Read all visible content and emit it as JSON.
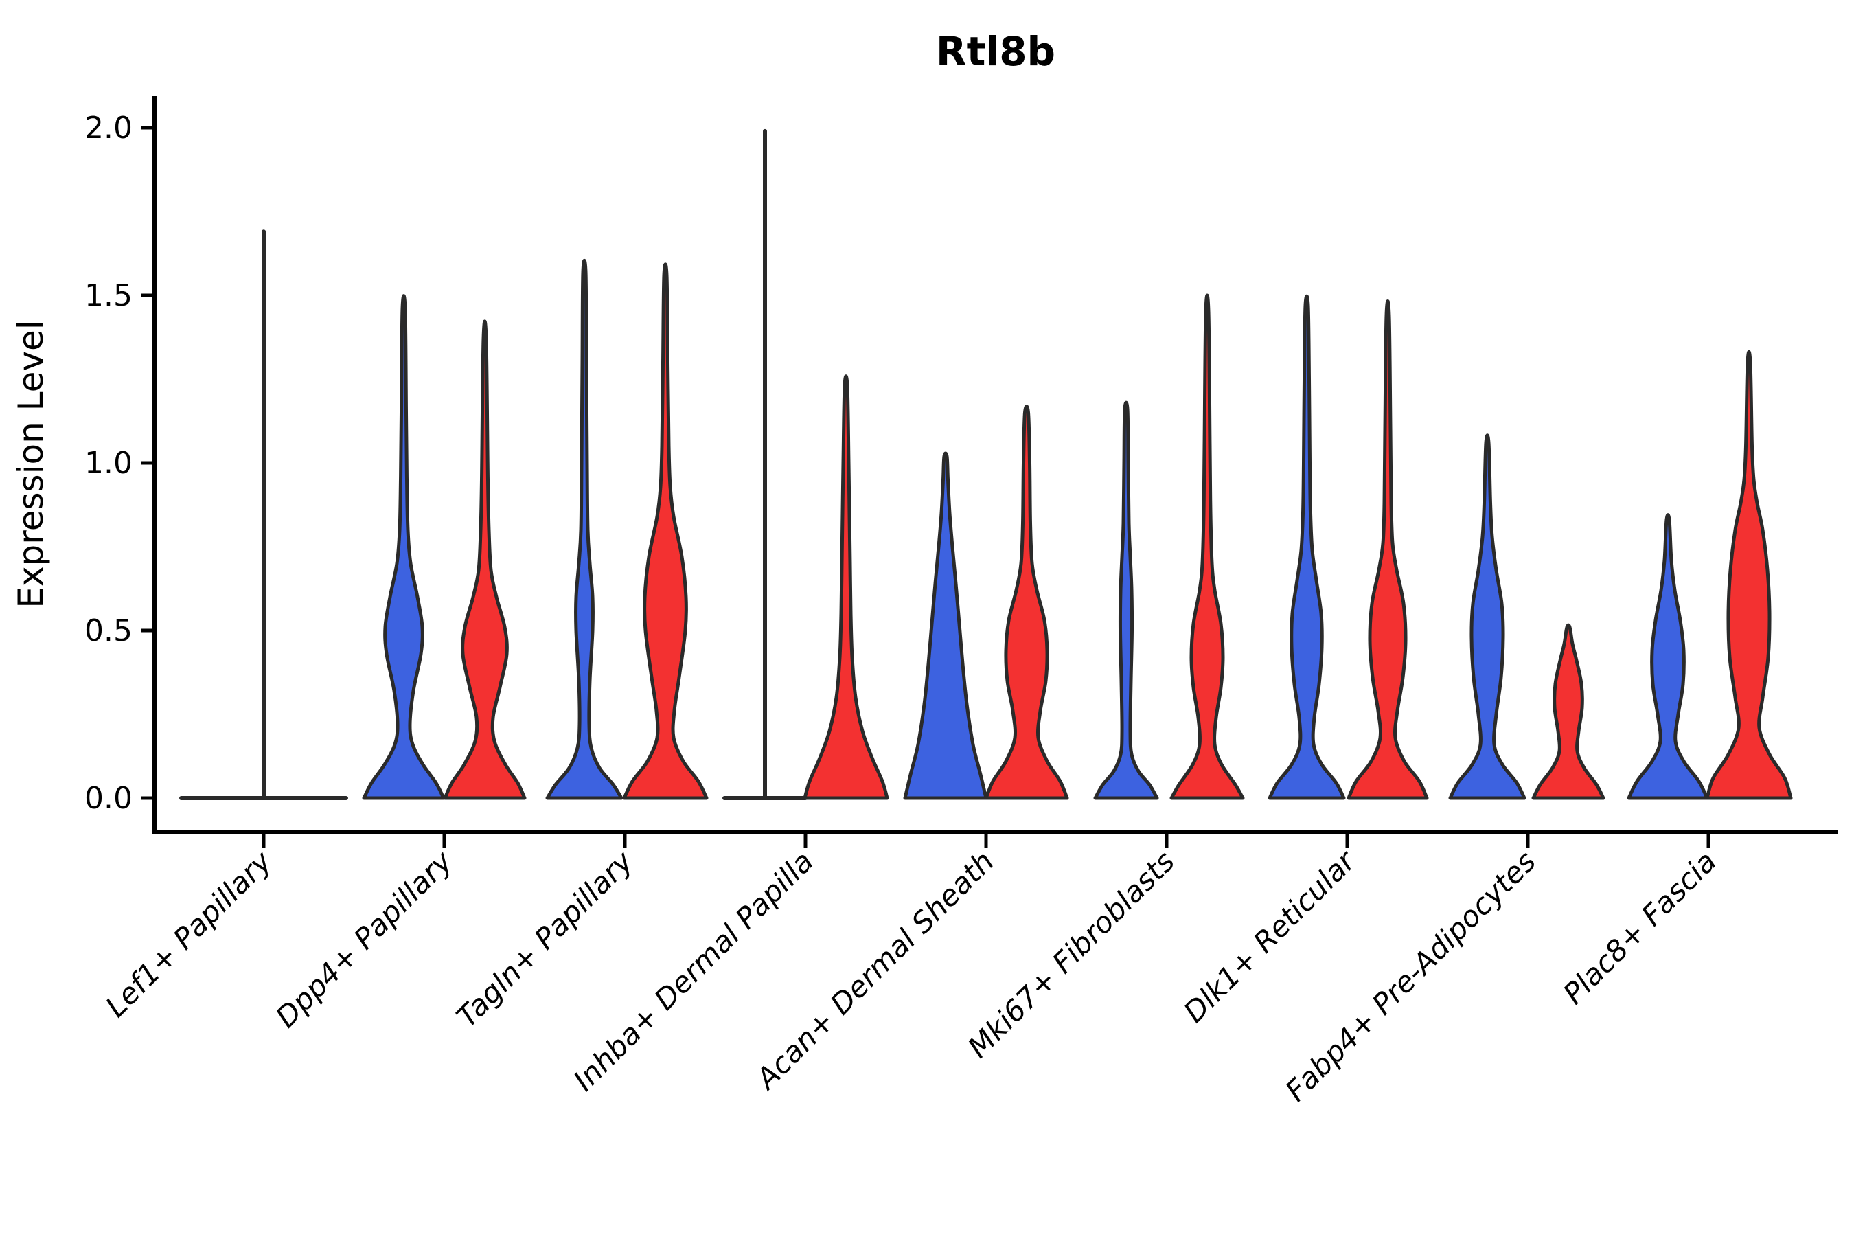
{
  "chart_data": {
    "type": "violin",
    "title": "Rtl8b",
    "ylabel": "Expression Level",
    "xlabel": "",
    "ylim": [
      -0.1,
      2.09
    ],
    "yticks": [
      0,
      0.5,
      1.0,
      1.5,
      2.0
    ],
    "ytick_labels": [
      "0.0",
      "0.5",
      "1.0",
      "1.5",
      "2.0"
    ],
    "grid": false,
    "legend": "none",
    "colors": {
      "blue": "#3D62E0",
      "red": "#F33131",
      "outline": "#2A2A2A",
      "axis": "#000000"
    },
    "groups": [
      {
        "label": "Lef1+ Papillary",
        "violins": [
          {
            "side": "center",
            "color": "none",
            "flat": true,
            "span_halfwidth": 120,
            "max": 1.69
          }
        ]
      },
      {
        "label": "Dpp4+ Papillary",
        "violins": [
          {
            "side": "left",
            "color": "blue",
            "max": 1.46,
            "profile": [
              [
                0,
                58
              ],
              [
                0.045,
                47
              ],
              [
                0.1,
                28
              ],
              [
                0.16,
                13
              ],
              [
                0.22,
                9
              ],
              [
                0.32,
                14
              ],
              [
                0.43,
                25
              ],
              [
                0.51,
                27
              ],
              [
                0.6,
                20
              ],
              [
                0.7,
                10
              ],
              [
                0.8,
                6
              ],
              [
                0.95,
                4.5
              ],
              [
                1.15,
                3.5
              ],
              [
                1.46,
                2
              ]
            ]
          },
          {
            "side": "right",
            "color": "red",
            "max": 1.37,
            "profile": [
              [
                0,
                58
              ],
              [
                0.045,
                48
              ],
              [
                0.1,
                30
              ],
              [
                0.17,
                14
              ],
              [
                0.24,
                12
              ],
              [
                0.33,
                22
              ],
              [
                0.43,
                32
              ],
              [
                0.51,
                29
              ],
              [
                0.6,
                17
              ],
              [
                0.68,
                9
              ],
              [
                0.8,
                6
              ],
              [
                0.95,
                4.5
              ],
              [
                1.37,
                2
              ]
            ]
          }
        ]
      },
      {
        "label": "Tagln+ Papillary",
        "violins": [
          {
            "side": "left",
            "color": "blue",
            "max": 1.57,
            "profile": [
              [
                0,
                54
              ],
              [
                0.04,
                42
              ],
              [
                0.09,
                22
              ],
              [
                0.15,
                10
              ],
              [
                0.22,
                7
              ],
              [
                0.35,
                8
              ],
              [
                0.5,
                12
              ],
              [
                0.6,
                12
              ],
              [
                0.7,
                8
              ],
              [
                0.8,
                5
              ],
              [
                1.0,
                4
              ],
              [
                1.3,
                3
              ],
              [
                1.57,
                2
              ]
            ]
          },
          {
            "side": "right",
            "color": "red",
            "max": 1.56,
            "profile": [
              [
                0,
                60
              ],
              [
                0.05,
                48
              ],
              [
                0.11,
                26
              ],
              [
                0.18,
                12
              ],
              [
                0.26,
                13
              ],
              [
                0.36,
                20
              ],
              [
                0.5,
                29
              ],
              [
                0.6,
                30
              ],
              [
                0.72,
                24
              ],
              [
                0.84,
                12
              ],
              [
                0.93,
                7
              ],
              [
                1.05,
                5
              ],
              [
                1.3,
                3.5
              ],
              [
                1.56,
                2
              ]
            ]
          }
        ]
      },
      {
        "label": "Inhba+ Dermal Papilla",
        "violins": [
          {
            "side": "left",
            "color": "blue",
            "flat": true,
            "span_halfwidth": 59,
            "max": 1.99
          },
          {
            "side": "right",
            "color": "red",
            "max": 1.23,
            "profile": [
              [
                0,
                60
              ],
              [
                0.05,
                53
              ],
              [
                0.12,
                38
              ],
              [
                0.2,
                24
              ],
              [
                0.3,
                14
              ],
              [
                0.42,
                9
              ],
              [
                0.55,
                7
              ],
              [
                0.7,
                6
              ],
              [
                0.85,
                5
              ],
              [
                1.0,
                4
              ],
              [
                1.23,
                2
              ]
            ]
          }
        ]
      },
      {
        "label": "Acan+ Dermal Sheath",
        "violins": [
          {
            "side": "left",
            "color": "blue",
            "max": 1.02,
            "profile": [
              [
                0,
                59
              ],
              [
                0.07,
                51
              ],
              [
                0.16,
                40
              ],
              [
                0.28,
                31
              ],
              [
                0.4,
                25
              ],
              [
                0.52,
                20
              ],
              [
                0.64,
                15
              ],
              [
                0.75,
                10
              ],
              [
                0.85,
                6
              ],
              [
                0.95,
                3.5
              ],
              [
                1.02,
                2
              ]
            ]
          },
          {
            "side": "right",
            "color": "red",
            "max": 1.15,
            "profile": [
              [
                0,
                59
              ],
              [
                0.05,
                49
              ],
              [
                0.11,
                30
              ],
              [
                0.18,
                17
              ],
              [
                0.26,
                20
              ],
              [
                0.35,
                28
              ],
              [
                0.44,
                30
              ],
              [
                0.53,
                26
              ],
              [
                0.62,
                15
              ],
              [
                0.7,
                8
              ],
              [
                0.82,
                5.5
              ],
              [
                1.0,
                4.5
              ],
              [
                1.15,
                2.5
              ]
            ]
          }
        ]
      },
      {
        "label": "Mki67+ Fibroblasts",
        "violins": [
          {
            "side": "left",
            "color": "blue",
            "max": 1.16,
            "profile": [
              [
                0,
                45
              ],
              [
                0.04,
                34
              ],
              [
                0.08,
                18
              ],
              [
                0.13,
                8
              ],
              [
                0.2,
                6
              ],
              [
                0.35,
                7
              ],
              [
                0.5,
                8.5
              ],
              [
                0.62,
                8
              ],
              [
                0.72,
                6
              ],
              [
                0.82,
                4
              ],
              [
                1.0,
                3
              ],
              [
                1.16,
                2
              ]
            ]
          },
          {
            "side": "right",
            "color": "red",
            "max": 1.45,
            "profile": [
              [
                0,
                52
              ],
              [
                0.04,
                41
              ],
              [
                0.1,
                21
              ],
              [
                0.16,
                11
              ],
              [
                0.24,
                13
              ],
              [
                0.33,
                20
              ],
              [
                0.42,
                23
              ],
              [
                0.52,
                20
              ],
              [
                0.62,
                11
              ],
              [
                0.7,
                7
              ],
              [
                0.85,
                5
              ],
              [
                1.05,
                4
              ],
              [
                1.45,
                2
              ]
            ]
          }
        ]
      },
      {
        "label": "Dlk1+ Reticular",
        "violins": [
          {
            "side": "left",
            "color": "blue",
            "max": 1.47,
            "profile": [
              [
                0,
                54
              ],
              [
                0.045,
                43
              ],
              [
                0.1,
                22
              ],
              [
                0.16,
                10
              ],
              [
                0.24,
                11
              ],
              [
                0.34,
                18
              ],
              [
                0.45,
                22
              ],
              [
                0.55,
                21
              ],
              [
                0.65,
                14
              ],
              [
                0.74,
                8
              ],
              [
                0.85,
                5.5
              ],
              [
                1.0,
                4.5
              ],
              [
                1.25,
                3.5
              ],
              [
                1.47,
                2
              ]
            ]
          },
          {
            "side": "right",
            "color": "red",
            "max": 1.44,
            "profile": [
              [
                0,
                57
              ],
              [
                0.05,
                46
              ],
              [
                0.11,
                24
              ],
              [
                0.18,
                11
              ],
              [
                0.26,
                14
              ],
              [
                0.36,
                22
              ],
              [
                0.47,
                26
              ],
              [
                0.58,
                23
              ],
              [
                0.68,
                13
              ],
              [
                0.76,
                7
              ],
              [
                0.88,
                5
              ],
              [
                1.1,
                4
              ],
              [
                1.44,
                2
              ]
            ]
          }
        ]
      },
      {
        "label": "Fabp4+ Pre-Adipocytes",
        "violins": [
          {
            "side": "left",
            "color": "blue",
            "max": 1.06,
            "profile": [
              [
                0,
                54
              ],
              [
                0.045,
                43
              ],
              [
                0.1,
                22
              ],
              [
                0.16,
                10
              ],
              [
                0.25,
                13
              ],
              [
                0.36,
                20
              ],
              [
                0.48,
                23
              ],
              [
                0.58,
                21
              ],
              [
                0.68,
                13
              ],
              [
                0.78,
                7
              ],
              [
                0.88,
                4.5
              ],
              [
                1.06,
                2
              ]
            ]
          },
          {
            "side": "right",
            "color": "red",
            "max": 0.51,
            "profile": [
              [
                0,
                51
              ],
              [
                0.04,
                41
              ],
              [
                0.09,
                23
              ],
              [
                0.14,
                13
              ],
              [
                0.2,
                15
              ],
              [
                0.27,
                20
              ],
              [
                0.34,
                19
              ],
              [
                0.41,
                12
              ],
              [
                0.46,
                6
              ],
              [
                0.51,
                2
              ]
            ]
          }
        ]
      },
      {
        "label": "Plac8+ Fascia",
        "violins": [
          {
            "side": "left",
            "color": "blue",
            "max": 0.83,
            "profile": [
              [
                0,
                57
              ],
              [
                0.05,
                45
              ],
              [
                0.11,
                23
              ],
              [
                0.17,
                11
              ],
              [
                0.25,
                15
              ],
              [
                0.34,
                22
              ],
              [
                0.44,
                23
              ],
              [
                0.53,
                18
              ],
              [
                0.62,
                10
              ],
              [
                0.71,
                5
              ],
              [
                0.83,
                2
              ]
            ]
          },
          {
            "side": "right",
            "color": "red",
            "max": 1.3,
            "profile": [
              [
                0,
                61
              ],
              [
                0.06,
                52
              ],
              [
                0.13,
                30
              ],
              [
                0.21,
                15
              ],
              [
                0.3,
                20
              ],
              [
                0.42,
                28
              ],
              [
                0.55,
                30
              ],
              [
                0.68,
                27
              ],
              [
                0.8,
                20
              ],
              [
                0.88,
                12
              ],
              [
                0.95,
                7
              ],
              [
                1.05,
                4.5
              ],
              [
                1.3,
                2
              ]
            ]
          }
        ]
      }
    ]
  }
}
